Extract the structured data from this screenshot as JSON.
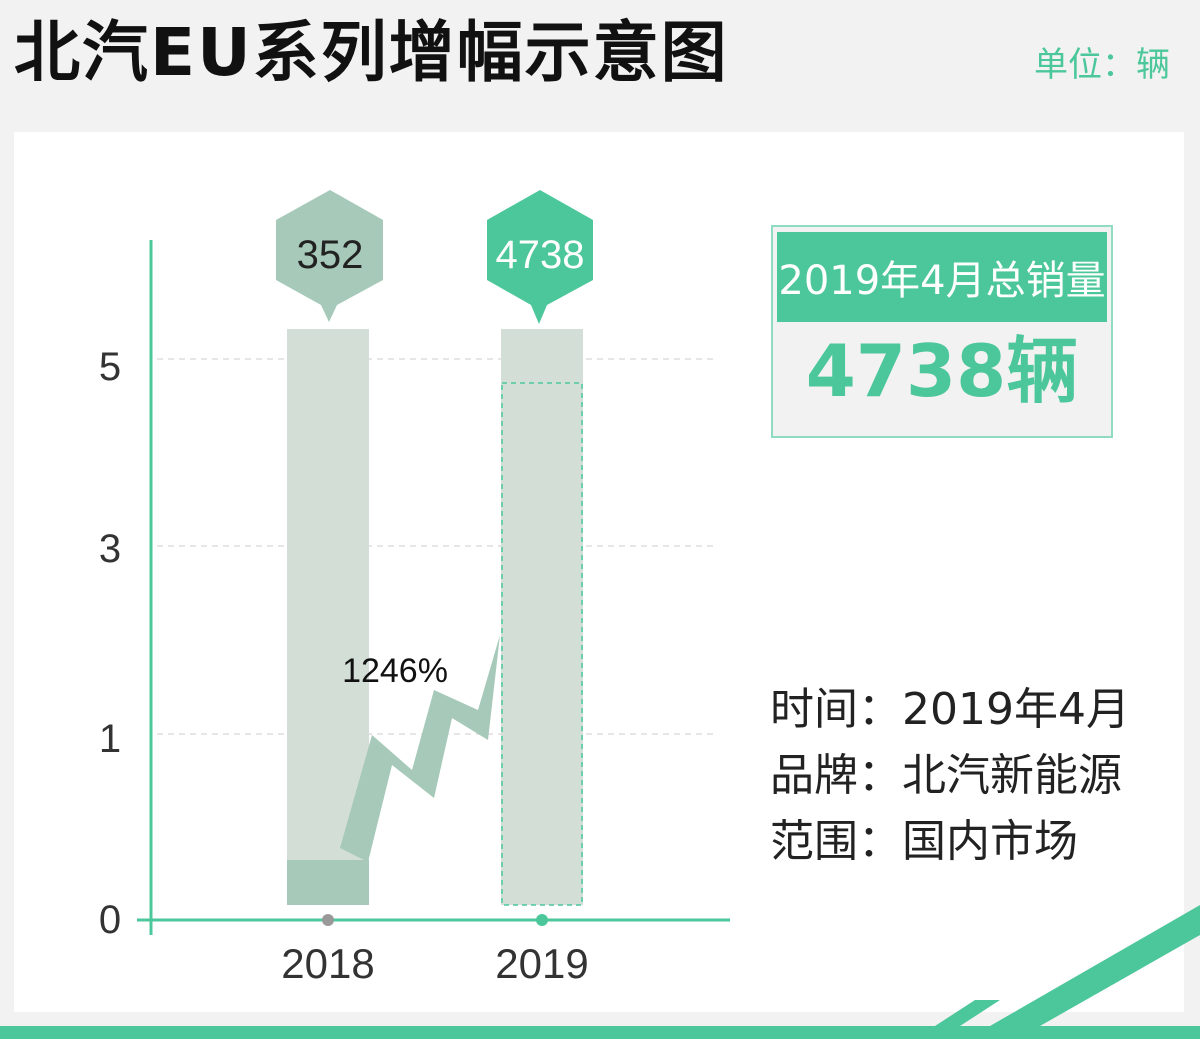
{
  "header": {
    "title": "北汽EU系列增幅示意图",
    "unit_label": "单位：辆"
  },
  "summary": {
    "label": "2019年4月总销量",
    "value": "4738辆"
  },
  "info": {
    "time": "时间：2019年4月",
    "brand": "品牌：北汽新能源",
    "scope": "范围：国内市场"
  },
  "colors": {
    "accent": "#4cc79b",
    "muted": "#a6c9b9",
    "bar_bg": "#d3ded7"
  },
  "chart_data": {
    "type": "bar",
    "categories": [
      "2018",
      "2019"
    ],
    "values": [
      352,
      4738
    ],
    "value_labels": [
      "352",
      "4738"
    ],
    "y_ticks": [
      "0",
      "1",
      "3",
      "5"
    ],
    "growth_label": "1246%",
    "grid": true,
    "legend": "none"
  }
}
